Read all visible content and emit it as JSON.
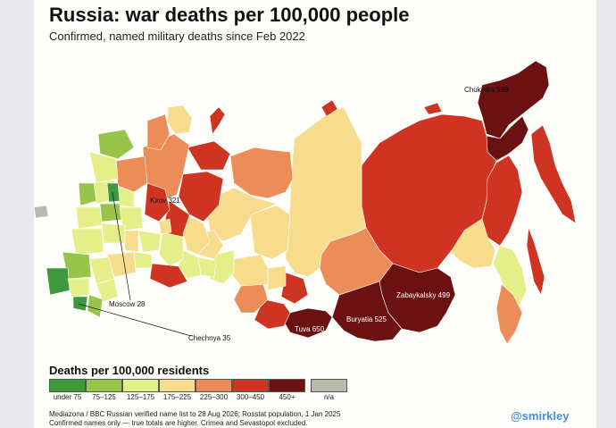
{
  "title": "Russia: war deaths per 100,000 people",
  "subtitle": "Confirmed, named military deaths since Feb 2022",
  "legend": {
    "title": "Deaths per 100,000 residents",
    "bins": [
      {
        "label": "under 75",
        "color": "#3c9a3c"
      },
      {
        "label": "75–125",
        "color": "#98c44a"
      },
      {
        "label": "125–175",
        "color": "#e4ef8a"
      },
      {
        "label": "175–225",
        "color": "#f6dc8c"
      },
      {
        "label": "225–300",
        "color": "#ec8d59"
      },
      {
        "label": "300–450",
        "color": "#cf3422"
      },
      {
        "label": "450+",
        "color": "#6c1111"
      },
      {
        "label": "n/a",
        "color": "#bdb8ae"
      }
    ]
  },
  "annotations": {
    "chukotka": "Chukotka 599",
    "kirov": "Kirov 321",
    "moscow": "Moscow 28",
    "chechnya": "Chechnya 35",
    "zabaykalsky": "Zabaykalsky 499",
    "buryatia": "Buryatia 525",
    "tuva": "Tuva 650"
  },
  "source_line1": "Mediazona / BBC Russian verified name list to 28 Aug 2026; Rosstat population, 1 Jan 2025",
  "source_line2": "Confirmed names only — true totals are higher. Crimea and Sevastopol excluded.",
  "handle": "@smirkley"
}
